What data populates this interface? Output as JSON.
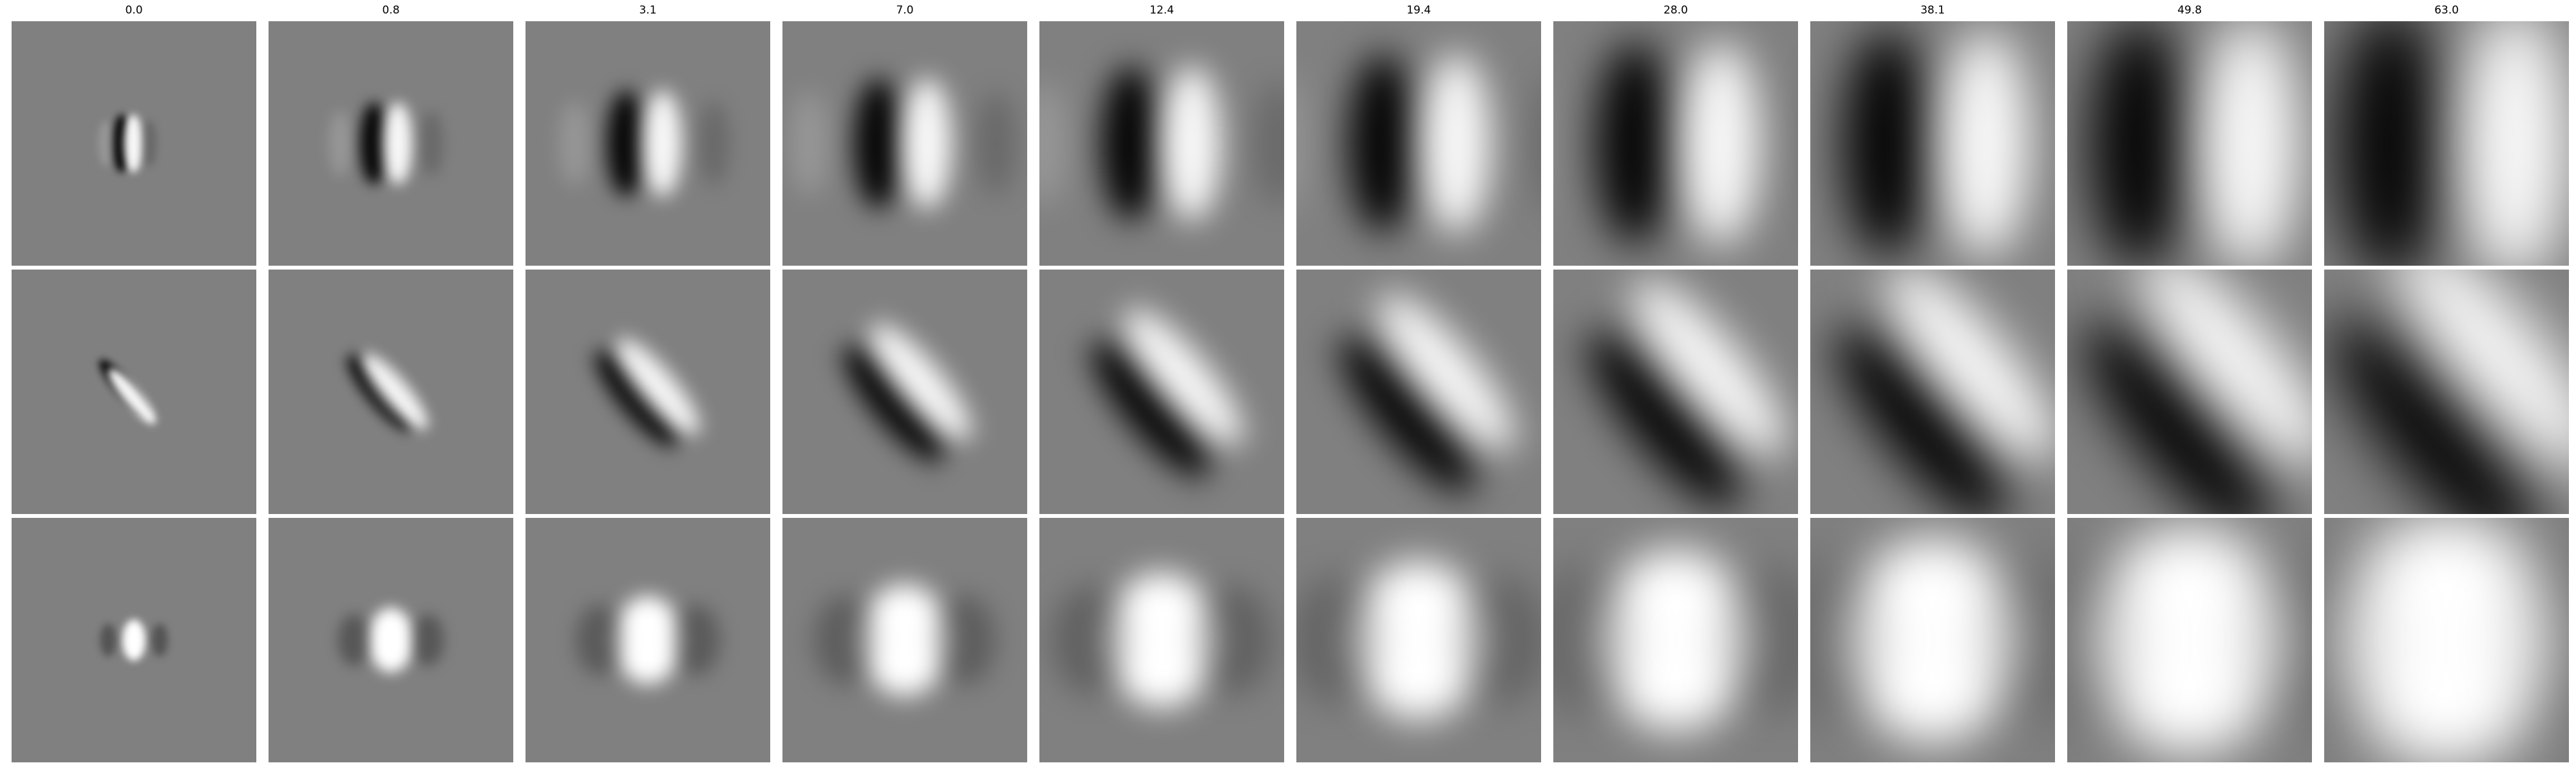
{
  "column_titles": [
    "0.0",
    "0.8",
    "3.1",
    "7.0",
    "12.4",
    "19.4",
    "28.0",
    "38.1",
    "49.8",
    "63.0"
  ],
  "rows": [
    {
      "pattern": "vertical-odd-filter"
    },
    {
      "pattern": "diagonal-odd-filter"
    },
    {
      "pattern": "center-even-filter"
    }
  ],
  "colors": {
    "background_gray": "#808080",
    "dark": "#000000",
    "light": "#ffffff"
  }
}
